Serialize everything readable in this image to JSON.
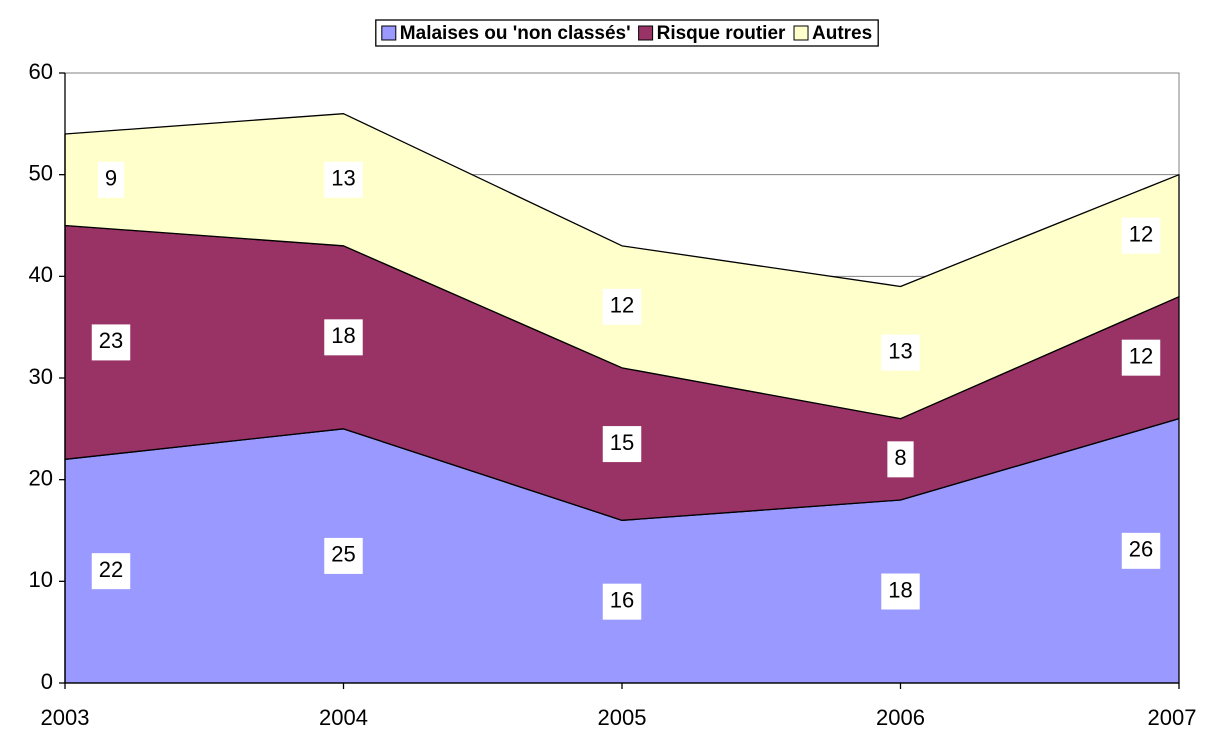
{
  "chart_data": {
    "type": "stacked_area",
    "categories": [
      "2003",
      "2004",
      "2005",
      "2006",
      "2007"
    ],
    "series": [
      {
        "name": "Malaises ou 'non classés'",
        "color": "#9999ff",
        "values": [
          22,
          25,
          16,
          18,
          26
        ]
      },
      {
        "name": "Risque routier",
        "color": "#993366",
        "values": [
          23,
          18,
          15,
          8,
          12
        ]
      },
      {
        "name": "Autres",
        "color": "#ffffcc",
        "values": [
          9,
          13,
          12,
          13,
          12
        ]
      }
    ],
    "ylim": [
      0,
      60
    ],
    "yticks": [
      0,
      10,
      20,
      30,
      40,
      50,
      60
    ],
    "grid": true,
    "legend": "top"
  }
}
